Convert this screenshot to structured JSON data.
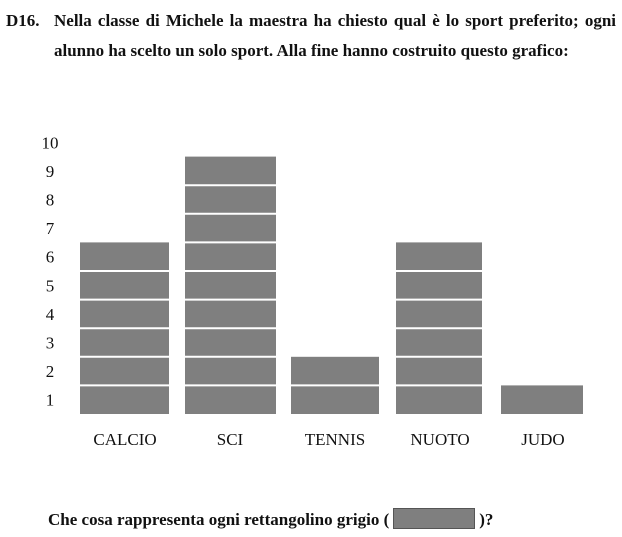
{
  "question": {
    "number": "D16.",
    "text": "Nella classe di Michele la maestra ha chiesto qual è lo sport preferito; ogni alunno ha scelto un solo sport. Alla fine hanno costruito questo grafico:"
  },
  "chart_data": {
    "type": "bar",
    "categories": [
      "CALCIO",
      "SCI",
      "TENNIS",
      "NUOTO",
      "JUDO"
    ],
    "values": [
      6,
      9,
      2,
      6,
      1
    ],
    "y_ticks": [
      "1",
      "2",
      "3",
      "4",
      "5",
      "6",
      "7",
      "8",
      "9",
      "10"
    ],
    "ylim": [
      0,
      10
    ],
    "bar_color": "#7f7f7f",
    "segment_line_color": "#ffffff",
    "grid": false,
    "legend": "none"
  },
  "footer": {
    "prefix": "Che cosa rappresenta ogni rettangolino grigio (",
    "suffix": ")?"
  }
}
